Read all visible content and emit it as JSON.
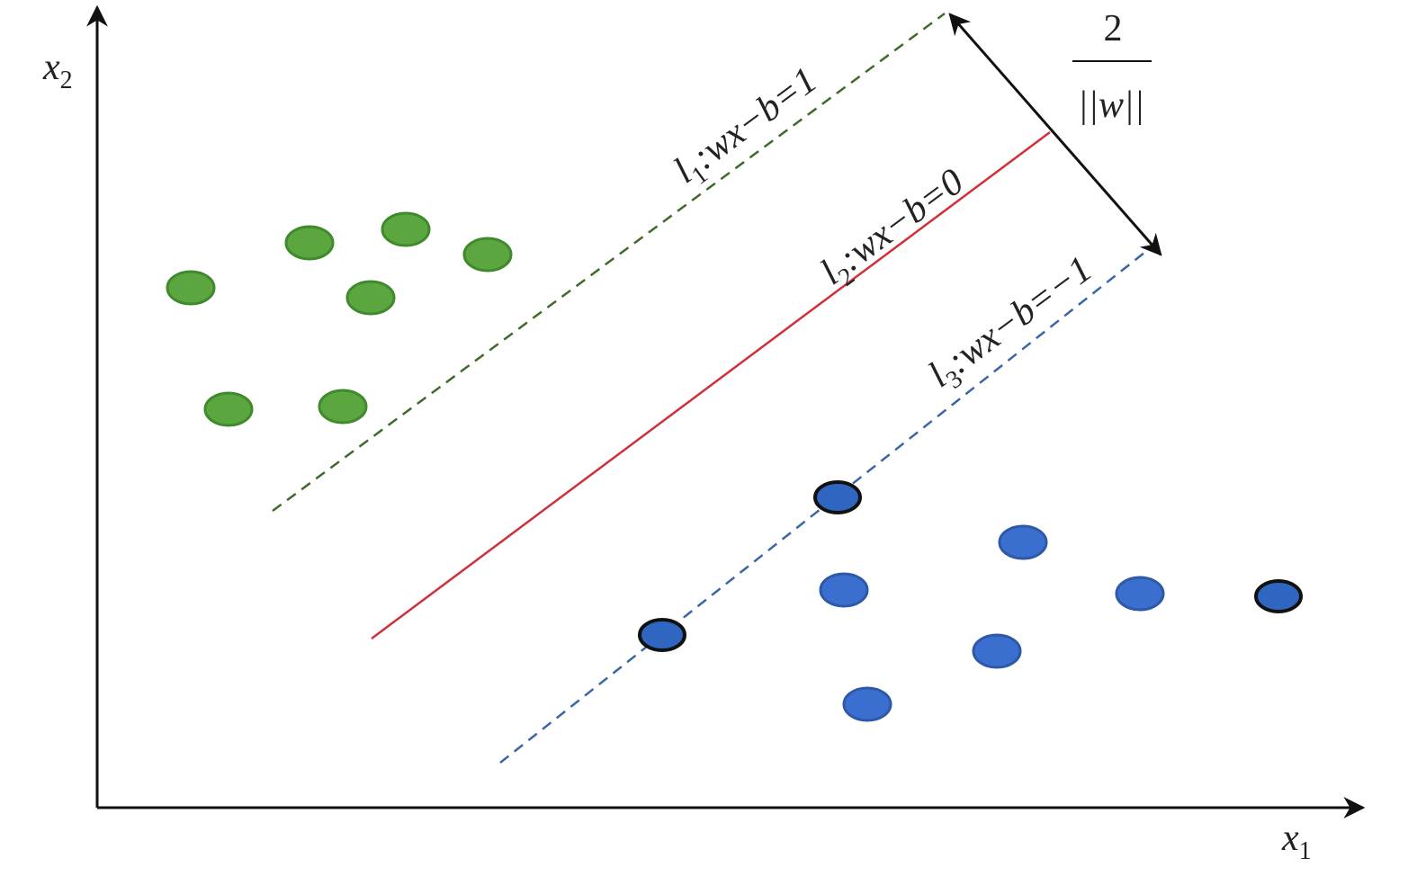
{
  "axes": {
    "x_label": {
      "base": "x",
      "sub": "1"
    },
    "y_label": {
      "base": "x",
      "sub": "2"
    }
  },
  "lines": [
    {
      "var": "l",
      "sub": "1",
      "eq": ":wx−b=1"
    },
    {
      "var": "l",
      "sub": "2",
      "eq": ":wx−b=0"
    },
    {
      "var": "l",
      "sub": "3",
      "eq": ":wx−b=−1"
    }
  ],
  "margin": {
    "numerator": "2",
    "denominator": "||w||"
  }
}
